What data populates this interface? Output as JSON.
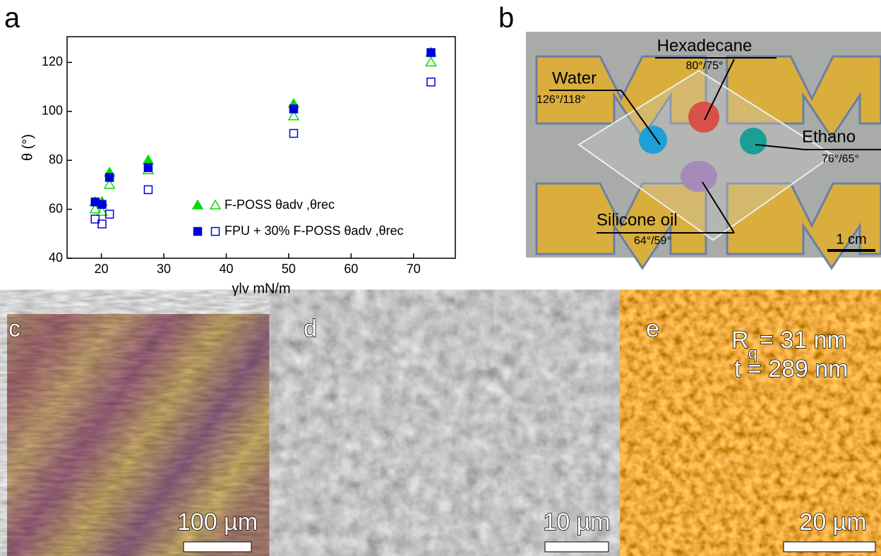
{
  "chart_data": {
    "type": "scatter",
    "panel": "a",
    "y_label": "θ (°)",
    "x_label": "γlv mN/m",
    "xlim": [
      14.5,
      76.7
    ],
    "ylim": [
      40,
      130.5
    ],
    "xticks": [
      20,
      30,
      40,
      50,
      60,
      70
    ],
    "yticks": [
      40,
      60,
      80,
      100,
      120
    ],
    "series": [
      {
        "name": "F-POSS θadv ,θrec",
        "color": "#00dd00",
        "marker": "triangle",
        "x": [
          19.0,
          20.1,
          21.3,
          27.5,
          50.8,
          72.8
        ],
        "values": [
          63,
          63,
          75,
          80,
          103,
          124
        ],
        "values_rec": [
          60,
          59,
          70,
          76,
          98,
          120
        ]
      },
      {
        "name": "FPU + 30% F-POSS θadv ,θrec",
        "color": "#0000dd",
        "marker": "square",
        "x": [
          19.0,
          20.1,
          21.3,
          27.5,
          50.8,
          72.8
        ],
        "values": [
          63,
          62,
          73,
          77,
          101,
          124
        ],
        "values_rec": [
          56,
          54,
          58,
          68,
          91,
          112
        ]
      }
    ]
  },
  "panels": {
    "b": {
      "label": "b",
      "hexadecane": "Hexadecane",
      "hexadecane_angles": "80°/75°",
      "water": "Water",
      "water_angles": "126°/118°",
      "ethanol": "Ethano",
      "ethanol_angles": "76°/65°",
      "silicone": "Silicone oil",
      "silicone_angles": "64°/59°",
      "scale": "1 cm"
    },
    "c": {
      "label": "c",
      "scale": "100 µm"
    },
    "d": {
      "label": "d",
      "scale": "10 µm"
    },
    "e": {
      "label": "e",
      "r": "R",
      "r_sub": "q",
      "r_value": "= 31 nm",
      "t_value": "t = 289 nm",
      "scale": "20 µm"
    }
  }
}
